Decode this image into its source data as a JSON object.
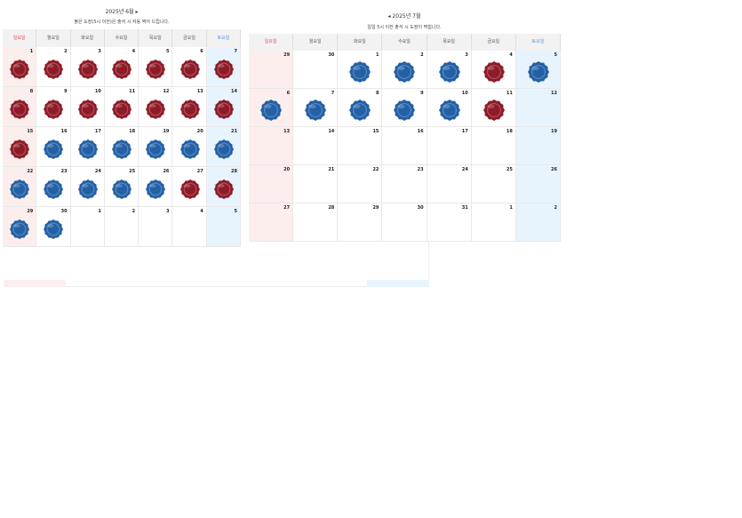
{
  "calendars": [
    {
      "title": "2025년 6월 ▸",
      "subtitle": "붉은 도장(5시 이전)은 출석 시 자동 찍어 드립니다.",
      "weekdays": [
        "일요일",
        "월요일",
        "화요일",
        "수요일",
        "목요일",
        "금요일",
        "토요일"
      ],
      "weeks": [
        [
          {
            "day": 1,
            "stamp": "red"
          },
          {
            "day": 2,
            "stamp": "red"
          },
          {
            "day": 3,
            "stamp": "red"
          },
          {
            "day": 4,
            "stamp": "red"
          },
          {
            "day": 5,
            "stamp": "red"
          },
          {
            "day": 6,
            "stamp": "red"
          },
          {
            "day": 7,
            "stamp": "red"
          }
        ],
        [
          {
            "day": 8,
            "stamp": "red"
          },
          {
            "day": 9,
            "stamp": "red"
          },
          {
            "day": 10,
            "stamp": "red"
          },
          {
            "day": 11,
            "stamp": "red"
          },
          {
            "day": 12,
            "stamp": "red"
          },
          {
            "day": 13,
            "stamp": "red"
          },
          {
            "day": 14,
            "stamp": "red"
          }
        ],
        [
          {
            "day": 15,
            "stamp": "red"
          },
          {
            "day": 16,
            "stamp": "blue"
          },
          {
            "day": 17,
            "stamp": "blue"
          },
          {
            "day": 18,
            "stamp": "blue"
          },
          {
            "day": 19,
            "stamp": "blue"
          },
          {
            "day": 20,
            "stamp": "blue"
          },
          {
            "day": 21,
            "stamp": "blue"
          }
        ],
        [
          {
            "day": 22,
            "stamp": "blue"
          },
          {
            "day": 23,
            "stamp": "blue"
          },
          {
            "day": 24,
            "stamp": "blue"
          },
          {
            "day": 25,
            "stamp": "blue"
          },
          {
            "day": 26,
            "stamp": "blue"
          },
          {
            "day": 27,
            "stamp": "red"
          },
          {
            "day": 28,
            "stamp": "red"
          }
        ],
        [
          {
            "day": 29,
            "stamp": "blue"
          },
          {
            "day": 30,
            "stamp": "blue"
          },
          {
            "day": 1
          },
          {
            "day": 2
          },
          {
            "day": 3
          },
          {
            "day": 4
          },
          {
            "day": 5
          }
        ]
      ]
    },
    {
      "title": "◂ 2025년 7월",
      "subtitle": "일일 5시 이전 출석 시 도장이 찍힙니다.",
      "weekdays": [
        "일요일",
        "월요일",
        "화요일",
        "수요일",
        "목요일",
        "금요일",
        "토요일"
      ],
      "weeks": [
        [
          {
            "day": 29
          },
          {
            "day": 30
          },
          {
            "day": 1,
            "stamp": "blue"
          },
          {
            "day": 2,
            "stamp": "blue"
          },
          {
            "day": 3,
            "stamp": "blue"
          },
          {
            "day": 4,
            "stamp": "red"
          },
          {
            "day": 5,
            "stamp": "blue"
          }
        ],
        [
          {
            "day": 6,
            "stamp": "blue"
          },
          {
            "day": 7,
            "stamp": "blue"
          },
          {
            "day": 8,
            "stamp": "blue"
          },
          {
            "day": 9,
            "stamp": "blue"
          },
          {
            "day": 10,
            "stamp": "blue"
          },
          {
            "day": 11,
            "stamp": "red"
          },
          {
            "day": 12
          }
        ],
        [
          {
            "day": 13
          },
          {
            "day": 14
          },
          {
            "day": 15
          },
          {
            "day": 16
          },
          {
            "day": 17
          },
          {
            "day": 18
          },
          {
            "day": 19
          }
        ],
        [
          {
            "day": 20
          },
          {
            "day": 21
          },
          {
            "day": 22
          },
          {
            "day": 23
          },
          {
            "day": 24
          },
          {
            "day": 25
          },
          {
            "day": 26
          }
        ],
        [
          {
            "day": 27
          },
          {
            "day": 28
          },
          {
            "day": 29
          },
          {
            "day": 30
          },
          {
            "day": 31
          },
          {
            "day": 1
          },
          {
            "day": 2
          }
        ]
      ]
    }
  ],
  "stamp_colors": {
    "red": "#8e1b27",
    "blue": "#2361a6"
  }
}
